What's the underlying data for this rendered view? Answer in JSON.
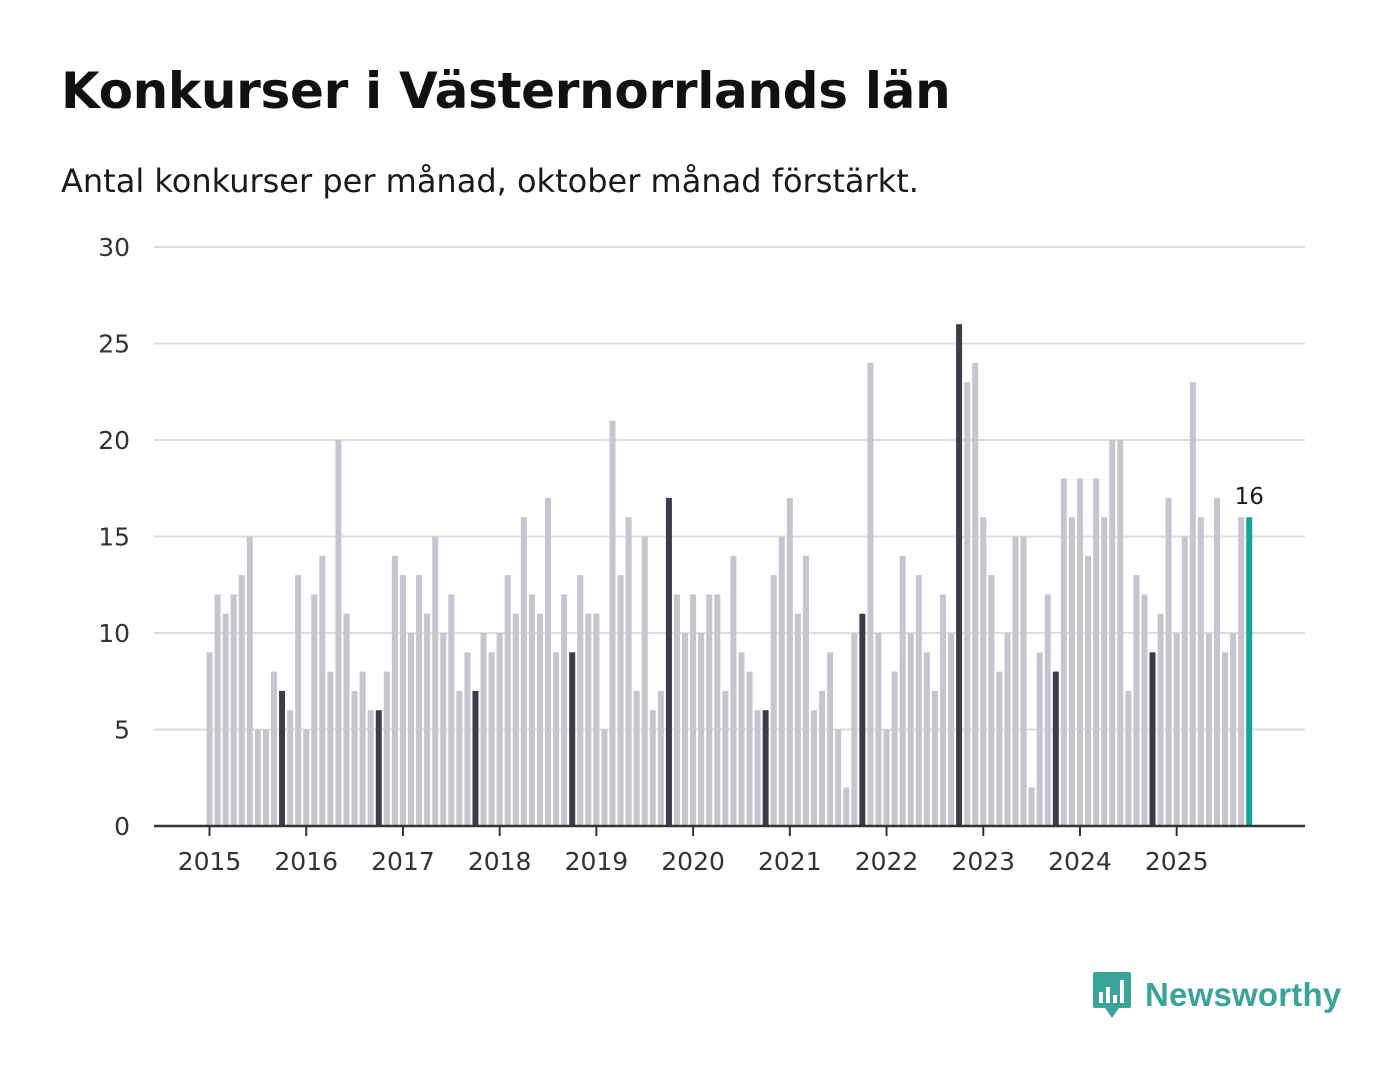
{
  "title": "Konkurser i Västernorrlands län",
  "subtitle": "Antal konkurser per månad, oktober månad förstärkt.",
  "brand": {
    "name": "Newsworthy",
    "icon": "bar-chart-speech-bubble-icon"
  },
  "colors": {
    "regular_bar": "#c6c6d0",
    "highlight_bar": "#3d3c4a",
    "latest_bar": "#1aa39a",
    "grid": "#dedede",
    "axis": "#333333",
    "brand": "#3aa39a"
  },
  "chart_data": {
    "type": "bar",
    "title": "Konkurser i Västernorrlands län",
    "subtitle": "Antal konkurser per månad, oktober månad förstärkt.",
    "xlabel": "",
    "ylabel": "",
    "ylim": [
      0,
      30
    ],
    "y_ticks": [
      0,
      5,
      10,
      15,
      20,
      25,
      30
    ],
    "x_tick_labels": [
      "2015",
      "2016",
      "2017",
      "2018",
      "2019",
      "2020",
      "2021",
      "2022",
      "2023",
      "2024",
      "2025"
    ],
    "start": "2015-01",
    "frequency": "monthly",
    "highlight_month": "oktober",
    "grid": true,
    "values": [
      9,
      12,
      11,
      12,
      13,
      15,
      5,
      5,
      8,
      7,
      6,
      13,
      5,
      12,
      14,
      8,
      20,
      11,
      7,
      8,
      6,
      6,
      8,
      14,
      13,
      10,
      13,
      11,
      15,
      10,
      12,
      7,
      9,
      7,
      10,
      9,
      10,
      13,
      11,
      16,
      12,
      11,
      17,
      9,
      12,
      9,
      13,
      11,
      11,
      5,
      21,
      13,
      16,
      7,
      15,
      6,
      7,
      17,
      12,
      10,
      12,
      10,
      12,
      12,
      7,
      14,
      9,
      8,
      6,
      6,
      13,
      15,
      17,
      11,
      14,
      6,
      7,
      9,
      5,
      2,
      10,
      11,
      24,
      10,
      5,
      8,
      14,
      10,
      13,
      9,
      7,
      12,
      10,
      26,
      23,
      24,
      16,
      13,
      8,
      10,
      15,
      15,
      2,
      9,
      12,
      8,
      18,
      16,
      18,
      14,
      18,
      16,
      20,
      20,
      7,
      13,
      12,
      9,
      11,
      17,
      10,
      15,
      23,
      16,
      10,
      17,
      9,
      10,
      16,
      16
    ],
    "last_value_label": "16"
  }
}
